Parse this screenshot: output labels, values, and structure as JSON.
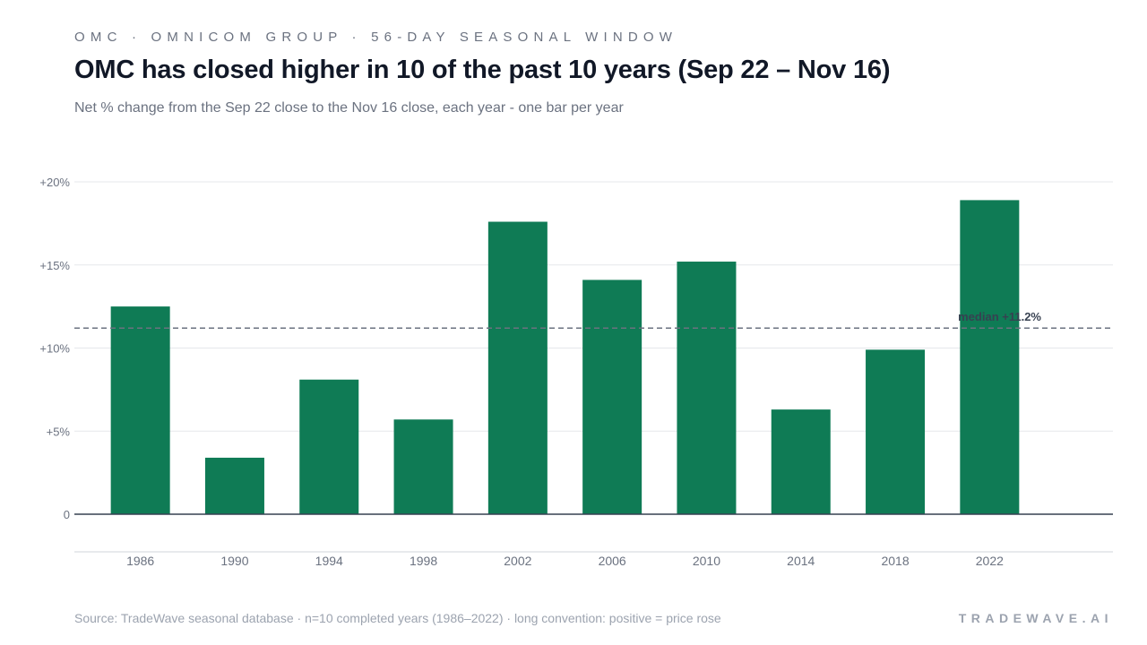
{
  "header": {
    "eyebrow": "OMC · OMNICOM GROUP · 56-DAY SEASONAL WINDOW",
    "title": "OMC has closed higher in 10 of the past 10 years (Sep 22 – Nov 16)",
    "subtitle": "Net % change from the Sep 22 close to the Nov 16 close, each year - one bar per year"
  },
  "footer": {
    "source": "Source: TradeWave seasonal database · n=10 completed years (1986–2022) · long convention: positive = price rose",
    "brand": "TRADEWAVE.AI"
  },
  "colors": {
    "bar": "#0f7b55",
    "grid": "#e5e7eb",
    "axis": "#374151",
    "median": "#6b7280"
  },
  "chart_data": {
    "type": "bar",
    "categories": [
      "1986",
      "1990",
      "1994",
      "1998",
      "2002",
      "2006",
      "2010",
      "2014",
      "2018",
      "2022"
    ],
    "values": [
      12.5,
      3.4,
      8.1,
      5.7,
      17.6,
      14.1,
      15.2,
      6.3,
      9.9,
      18.9
    ],
    "title": "OMC has closed higher in 10 of the past 10 years (Sep 22 – Nov 16)",
    "xlabel": "",
    "ylabel": "",
    "ylim": [
      0,
      20
    ],
    "yticks": [
      0,
      5,
      10,
      15,
      20
    ],
    "ytick_labels": [
      "0",
      "+5%",
      "+10%",
      "+15%",
      "+20%"
    ],
    "grid": true,
    "median": {
      "value": 11.2,
      "label": "median +11.2%"
    }
  }
}
